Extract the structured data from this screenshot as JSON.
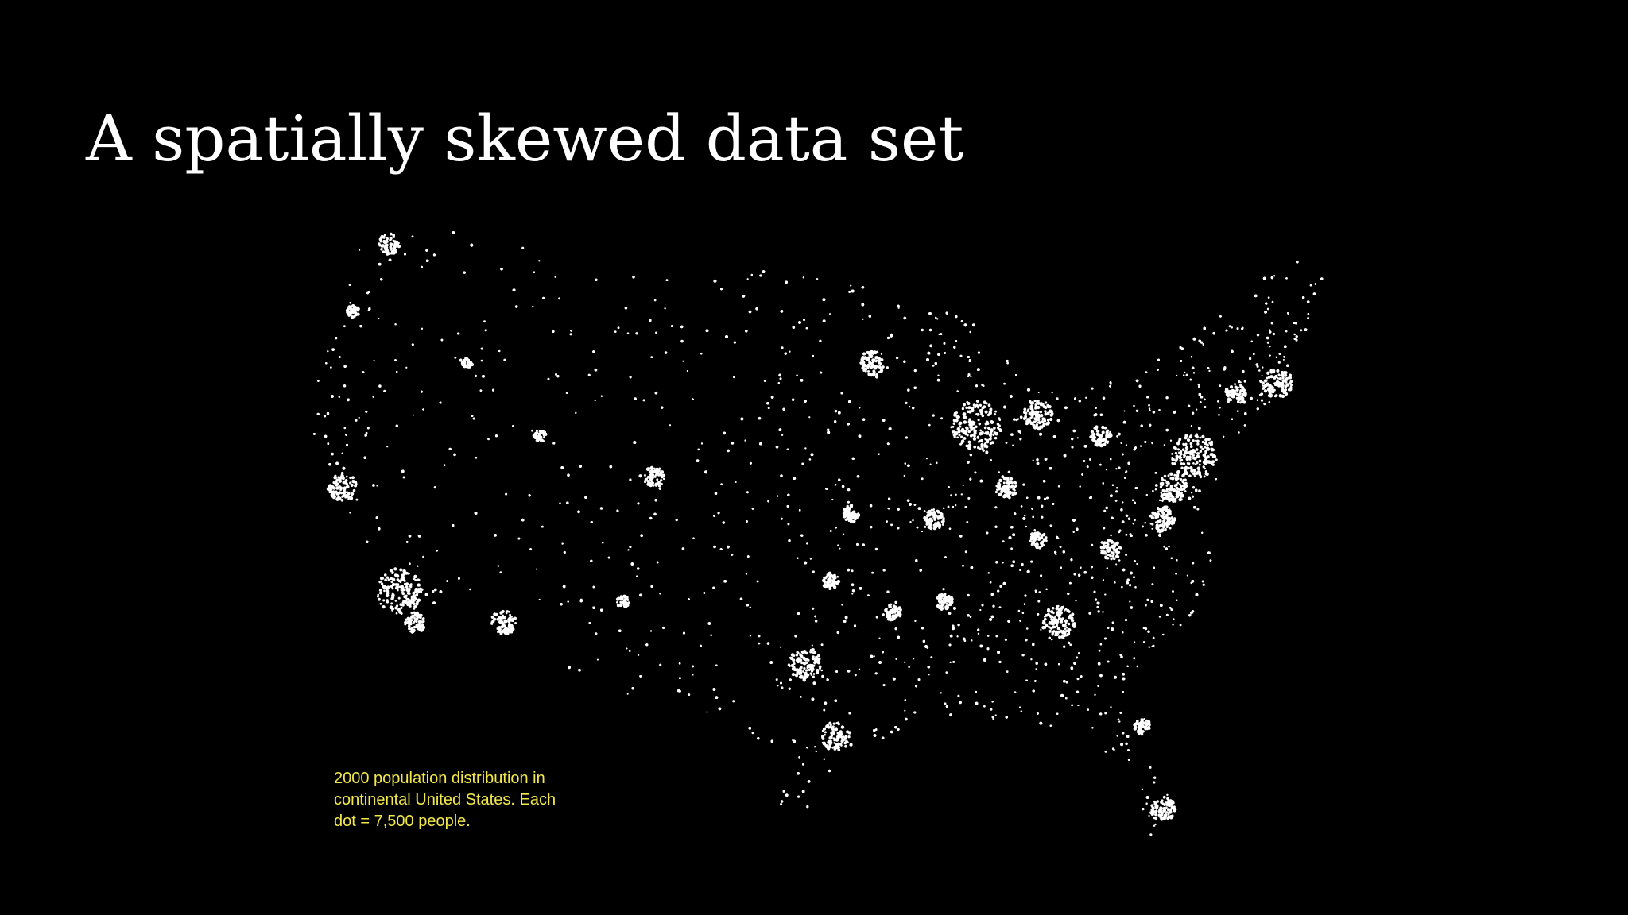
{
  "title": "A spatially skewed data set",
  "caption": {
    "lines": [
      "2000 population distribution in",
      "continental United States. Each",
      "dot = 7,500 people."
    ]
  }
}
